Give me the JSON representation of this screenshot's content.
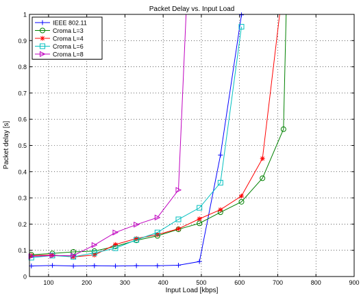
{
  "chart_data": {
    "type": "line",
    "title": "Packet Delay vs. Input Load",
    "xlabel": "Input Load [kbps]",
    "ylabel": "Packet delay [s]",
    "xlim": [
      50,
      900
    ],
    "ylim": [
      0,
      1
    ],
    "xticks": [
      100,
      200,
      300,
      400,
      500,
      600,
      700,
      800,
      900
    ],
    "yticks": [
      0,
      0.1,
      0.2,
      0.3,
      0.4,
      0.5,
      0.6,
      0.7,
      0.8,
      0.9,
      1
    ],
    "grid": true,
    "legend_position": "top-left",
    "series": [
      {
        "name": "IEEE 802.11",
        "color": "#0000ff",
        "marker": "plus",
        "x": [
          55,
          110,
          165,
          220,
          275,
          330,
          385,
          440,
          495,
          550,
          605
        ],
        "y": [
          0.04,
          0.042,
          0.04,
          0.041,
          0.04,
          0.041,
          0.041,
          0.043,
          0.057,
          0.463,
          0.998
        ]
      },
      {
        "name": "Croma L=3",
        "color": "#008000",
        "marker": "circle",
        "x": [
          55,
          110,
          165,
          220,
          275,
          330,
          385,
          440,
          495,
          550,
          605,
          660,
          715,
          722
        ],
        "y": [
          0.083,
          0.088,
          0.094,
          0.097,
          0.115,
          0.138,
          0.155,
          0.18,
          0.203,
          0.245,
          0.285,
          0.375,
          0.562,
          1.0
        ]
      },
      {
        "name": "Croma L=4",
        "color": "#ff0000",
        "marker": "star",
        "x": [
          55,
          110,
          165,
          220,
          275,
          330,
          385,
          440,
          495,
          550,
          605,
          660,
          705
        ],
        "y": [
          0.08,
          0.082,
          0.075,
          0.082,
          0.122,
          0.145,
          0.16,
          0.182,
          0.22,
          0.255,
          0.307,
          0.45,
          1.0
        ]
      },
      {
        "name": "Croma L=6",
        "color": "#00bfbf",
        "marker": "square",
        "x": [
          55,
          110,
          165,
          220,
          275,
          330,
          385,
          440,
          495,
          550,
          605
        ],
        "y": [
          0.072,
          0.08,
          0.075,
          0.09,
          0.108,
          0.14,
          0.168,
          0.218,
          0.262,
          0.358,
          0.953
        ]
      },
      {
        "name": "Croma L=8",
        "color": "#bf00bf",
        "marker": "triangle-right",
        "x": [
          55,
          110,
          165,
          220,
          275,
          330,
          385,
          440,
          460
        ],
        "y": [
          0.077,
          0.08,
          0.08,
          0.12,
          0.168,
          0.198,
          0.225,
          0.33,
          1.0
        ]
      }
    ]
  }
}
